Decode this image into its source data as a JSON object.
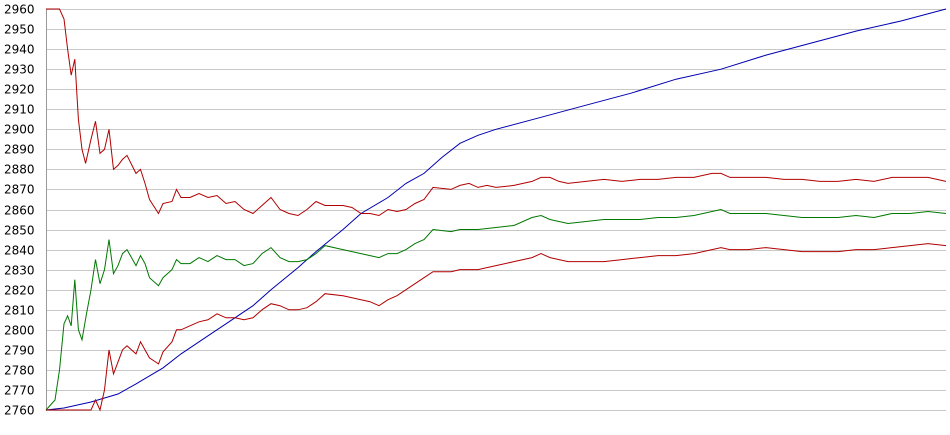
{
  "chart_data": {
    "type": "line",
    "title": "",
    "xlabel": "",
    "ylabel": "",
    "grid": true,
    "legend": "none",
    "ylim": [
      2760,
      2960
    ],
    "xlim": [
      0,
      100
    ],
    "yticks": [
      2760,
      2770,
      2780,
      2790,
      2800,
      2810,
      2820,
      2830,
      2840,
      2850,
      2860,
      2870,
      2880,
      2890,
      2900,
      2910,
      2920,
      2930,
      2940,
      2950,
      2960
    ],
    "colors": {
      "blue": "#0000b0",
      "red": "#b00000",
      "green": "#007800",
      "grid": "#c8c8c8",
      "axis": "#9a9a9a"
    },
    "series": [
      {
        "color": "#0000b0",
        "points": [
          [
            0,
            2760
          ],
          [
            2,
            2761
          ],
          [
            5,
            2764
          ],
          [
            8,
            2768
          ],
          [
            10,
            2773
          ],
          [
            13,
            2781
          ],
          [
            15,
            2788
          ],
          [
            18,
            2797
          ],
          [
            20,
            2803
          ],
          [
            23,
            2812
          ],
          [
            25,
            2820
          ],
          [
            28,
            2831
          ],
          [
            30,
            2839
          ],
          [
            33,
            2850
          ],
          [
            35,
            2858
          ],
          [
            38,
            2866
          ],
          [
            40,
            2873
          ],
          [
            42,
            2878
          ],
          [
            44,
            2886
          ],
          [
            46,
            2893
          ],
          [
            48,
            2897
          ],
          [
            50,
            2900
          ],
          [
            55,
            2906
          ],
          [
            60,
            2912
          ],
          [
            65,
            2918
          ],
          [
            70,
            2925
          ],
          [
            75,
            2930
          ],
          [
            80,
            2937
          ],
          [
            85,
            2943
          ],
          [
            90,
            2949
          ],
          [
            95,
            2954
          ],
          [
            100,
            2960
          ]
        ]
      },
      {
        "color": "#b00000",
        "points": [
          [
            0,
            2960
          ],
          [
            1.5,
            2960
          ],
          [
            2,
            2955
          ],
          [
            2.4,
            2940
          ],
          [
            2.8,
            2927
          ],
          [
            3.2,
            2935
          ],
          [
            3.6,
            2905
          ],
          [
            4,
            2890
          ],
          [
            4.4,
            2883
          ],
          [
            5,
            2895
          ],
          [
            5.5,
            2904
          ],
          [
            6,
            2888
          ],
          [
            6.5,
            2890
          ],
          [
            7,
            2900
          ],
          [
            7.5,
            2880
          ],
          [
            8,
            2882
          ],
          [
            8.5,
            2885
          ],
          [
            9,
            2887
          ],
          [
            10,
            2878
          ],
          [
            10.5,
            2880
          ],
          [
            11,
            2873
          ],
          [
            11.5,
            2865
          ],
          [
            12.5,
            2858
          ],
          [
            13,
            2863
          ],
          [
            14,
            2864
          ],
          [
            14.5,
            2870
          ],
          [
            15,
            2866
          ],
          [
            16,
            2866
          ],
          [
            17,
            2868
          ],
          [
            18,
            2866
          ],
          [
            19,
            2867
          ],
          [
            20,
            2863
          ],
          [
            21,
            2864
          ],
          [
            22,
            2860
          ],
          [
            23,
            2858
          ],
          [
            24,
            2862
          ],
          [
            25,
            2866
          ],
          [
            26,
            2860
          ],
          [
            27,
            2858
          ],
          [
            28,
            2857
          ],
          [
            29,
            2860
          ],
          [
            30,
            2864
          ],
          [
            31,
            2862
          ],
          [
            33,
            2862
          ],
          [
            34,
            2861
          ],
          [
            35,
            2858
          ],
          [
            36,
            2858
          ],
          [
            37,
            2857
          ],
          [
            38,
            2860
          ],
          [
            39,
            2859
          ],
          [
            40,
            2860
          ],
          [
            41,
            2863
          ],
          [
            42,
            2865
          ],
          [
            43,
            2871
          ],
          [
            45,
            2870
          ],
          [
            46,
            2872
          ],
          [
            47,
            2873
          ],
          [
            48,
            2871
          ],
          [
            49,
            2872
          ],
          [
            50,
            2871
          ],
          [
            52,
            2872
          ],
          [
            54,
            2874
          ],
          [
            55,
            2876
          ],
          [
            56,
            2876
          ],
          [
            57,
            2874
          ],
          [
            58,
            2873
          ],
          [
            60,
            2874
          ],
          [
            62,
            2875
          ],
          [
            64,
            2874
          ],
          [
            66,
            2875
          ],
          [
            68,
            2875
          ],
          [
            70,
            2876
          ],
          [
            72,
            2876
          ],
          [
            74,
            2878
          ],
          [
            75,
            2878
          ],
          [
            76,
            2876
          ],
          [
            78,
            2876
          ],
          [
            80,
            2876
          ],
          [
            82,
            2875
          ],
          [
            84,
            2875
          ],
          [
            86,
            2874
          ],
          [
            88,
            2874
          ],
          [
            90,
            2875
          ],
          [
            92,
            2874
          ],
          [
            94,
            2876
          ],
          [
            96,
            2876
          ],
          [
            98,
            2876
          ],
          [
            100,
            2874
          ]
        ]
      },
      {
        "color": "#007800",
        "points": [
          [
            0,
            2760
          ],
          [
            1,
            2765
          ],
          [
            1.5,
            2780
          ],
          [
            2,
            2803
          ],
          [
            2.4,
            2807
          ],
          [
            2.8,
            2802
          ],
          [
            3.2,
            2825
          ],
          [
            3.6,
            2800
          ],
          [
            4,
            2795
          ],
          [
            4.5,
            2808
          ],
          [
            5,
            2820
          ],
          [
            5.5,
            2835
          ],
          [
            6,
            2823
          ],
          [
            6.5,
            2830
          ],
          [
            7,
            2845
          ],
          [
            7.5,
            2828
          ],
          [
            8,
            2832
          ],
          [
            8.5,
            2838
          ],
          [
            9,
            2840
          ],
          [
            10,
            2832
          ],
          [
            10.5,
            2837
          ],
          [
            11,
            2833
          ],
          [
            11.5,
            2826
          ],
          [
            12.5,
            2822
          ],
          [
            13,
            2826
          ],
          [
            14,
            2830
          ],
          [
            14.5,
            2835
          ],
          [
            15,
            2833
          ],
          [
            16,
            2833
          ],
          [
            17,
            2836
          ],
          [
            18,
            2834
          ],
          [
            19,
            2837
          ],
          [
            20,
            2835
          ],
          [
            21,
            2835
          ],
          [
            22,
            2832
          ],
          [
            23,
            2833
          ],
          [
            24,
            2838
          ],
          [
            25,
            2841
          ],
          [
            26,
            2836
          ],
          [
            27,
            2834
          ],
          [
            28,
            2834
          ],
          [
            29,
            2835
          ],
          [
            30,
            2838
          ],
          [
            31,
            2842
          ],
          [
            33,
            2840
          ],
          [
            35,
            2838
          ],
          [
            36,
            2837
          ],
          [
            37,
            2836
          ],
          [
            38,
            2838
          ],
          [
            39,
            2838
          ],
          [
            40,
            2840
          ],
          [
            41,
            2843
          ],
          [
            42,
            2845
          ],
          [
            43,
            2850
          ],
          [
            45,
            2849
          ],
          [
            46,
            2850
          ],
          [
            48,
            2850
          ],
          [
            50,
            2851
          ],
          [
            52,
            2852
          ],
          [
            54,
            2856
          ],
          [
            55,
            2857
          ],
          [
            56,
            2855
          ],
          [
            58,
            2853
          ],
          [
            60,
            2854
          ],
          [
            62,
            2855
          ],
          [
            64,
            2855
          ],
          [
            66,
            2855
          ],
          [
            68,
            2856
          ],
          [
            70,
            2856
          ],
          [
            72,
            2857
          ],
          [
            74,
            2859
          ],
          [
            75,
            2860
          ],
          [
            76,
            2858
          ],
          [
            78,
            2858
          ],
          [
            80,
            2858
          ],
          [
            82,
            2857
          ],
          [
            84,
            2856
          ],
          [
            86,
            2856
          ],
          [
            88,
            2856
          ],
          [
            90,
            2857
          ],
          [
            92,
            2856
          ],
          [
            94,
            2858
          ],
          [
            96,
            2858
          ],
          [
            98,
            2859
          ],
          [
            100,
            2858
          ]
        ]
      },
      {
        "color": "#b00000",
        "points": [
          [
            0,
            2760
          ],
          [
            5,
            2760
          ],
          [
            5.5,
            2765
          ],
          [
            6,
            2760
          ],
          [
            6.5,
            2770
          ],
          [
            7,
            2790
          ],
          [
            7.5,
            2778
          ],
          [
            8,
            2784
          ],
          [
            8.5,
            2790
          ],
          [
            9,
            2792
          ],
          [
            10,
            2788
          ],
          [
            10.5,
            2794
          ],
          [
            11,
            2790
          ],
          [
            11.5,
            2786
          ],
          [
            12.5,
            2783
          ],
          [
            13,
            2789
          ],
          [
            14,
            2794
          ],
          [
            14.5,
            2800
          ],
          [
            15,
            2800
          ],
          [
            16,
            2802
          ],
          [
            17,
            2804
          ],
          [
            18,
            2805
          ],
          [
            19,
            2808
          ],
          [
            20,
            2806
          ],
          [
            21,
            2806
          ],
          [
            22,
            2805
          ],
          [
            23,
            2806
          ],
          [
            24,
            2810
          ],
          [
            25,
            2813
          ],
          [
            26,
            2812
          ],
          [
            27,
            2810
          ],
          [
            28,
            2810
          ],
          [
            29,
            2811
          ],
          [
            30,
            2814
          ],
          [
            31,
            2818
          ],
          [
            33,
            2817
          ],
          [
            35,
            2815
          ],
          [
            36,
            2814
          ],
          [
            37,
            2812
          ],
          [
            38,
            2815
          ],
          [
            39,
            2817
          ],
          [
            40,
            2820
          ],
          [
            41,
            2823
          ],
          [
            42,
            2826
          ],
          [
            43,
            2829
          ],
          [
            45,
            2829
          ],
          [
            46,
            2830
          ],
          [
            48,
            2830
          ],
          [
            50,
            2832
          ],
          [
            52,
            2834
          ],
          [
            54,
            2836
          ],
          [
            55,
            2838
          ],
          [
            56,
            2836
          ],
          [
            58,
            2834
          ],
          [
            60,
            2834
          ],
          [
            62,
            2834
          ],
          [
            64,
            2835
          ],
          [
            66,
            2836
          ],
          [
            68,
            2837
          ],
          [
            70,
            2837
          ],
          [
            72,
            2838
          ],
          [
            74,
            2840
          ],
          [
            75,
            2841
          ],
          [
            76,
            2840
          ],
          [
            78,
            2840
          ],
          [
            80,
            2841
          ],
          [
            82,
            2840
          ],
          [
            84,
            2839
          ],
          [
            86,
            2839
          ],
          [
            88,
            2839
          ],
          [
            90,
            2840
          ],
          [
            92,
            2840
          ],
          [
            94,
            2841
          ],
          [
            96,
            2842
          ],
          [
            98,
            2843
          ],
          [
            100,
            2842
          ]
        ]
      }
    ]
  }
}
